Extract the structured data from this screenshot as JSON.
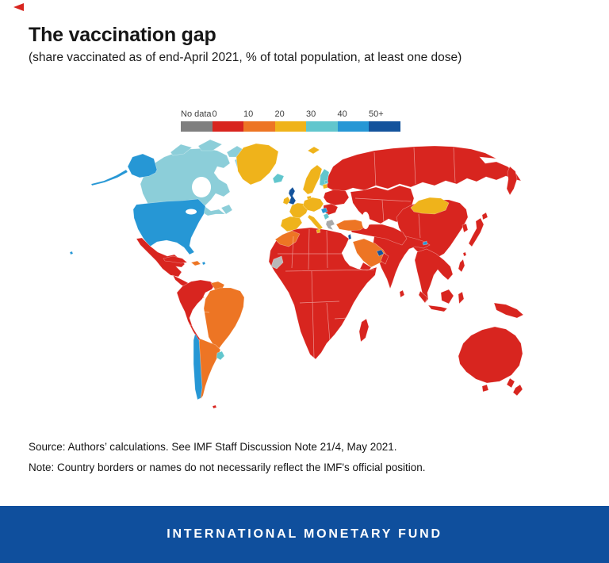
{
  "page": {
    "background": "#ffffff"
  },
  "decorations": {
    "corner_marker_color": "#d8251f"
  },
  "footnotes": {
    "source": "Source: Authors’ calculations. See IMF Staff Discussion Note 21/4, May 2021.",
    "note": "Note: Country borders or names do not necessarily reflect the IMF's official position."
  },
  "footer": {
    "label": "INTERNATIONAL MONETARY FUND",
    "background": "#0f4f9d",
    "text_color": "#ffffff"
  },
  "chart_data": {
    "type": "heatmap",
    "subtype": "choropleth_world_map",
    "title": "The vaccination gap",
    "subtitle": "(share vaccinated as of end-April 2021, % of total population, at least one dose)",
    "metric": "share of total population vaccinated with at least one dose",
    "as_of": "end-April 2021",
    "legend": {
      "position": "top",
      "bins": [
        {
          "label": "No data",
          "color": "#7f7f7f"
        },
        {
          "label": "0",
          "color": "#d8251f"
        },
        {
          "label": "10",
          "color": "#ed7524"
        },
        {
          "label": "20",
          "color": "#efb31b"
        },
        {
          "label": "30",
          "color": "#61c6cd"
        },
        {
          "label": "40",
          "color": "#2697d5"
        },
        {
          "label": "50+",
          "color": "#14539c"
        }
      ]
    },
    "regions": {
      "alaska": {
        "bin": "40"
      },
      "hawaii": {
        "bin": "40"
      },
      "canada": {
        "bin": "30",
        "fill": "#8cced9"
      },
      "greenland": {
        "bin": "20"
      },
      "iceland": {
        "bin": "30"
      },
      "svalbard": {
        "bin": "20"
      },
      "usa": {
        "bin": "40"
      },
      "mexico": {
        "bin": "0"
      },
      "central-america": {
        "bin": "0"
      },
      "panama-costa-rica": {
        "bin": "10"
      },
      "cuba": {
        "bin": "0"
      },
      "hispaniola": {
        "bin": "10"
      },
      "puerto-rico": {
        "bin": "40"
      },
      "andean-south-america": {
        "bin": "0"
      },
      "guyanas": {
        "bin": "10"
      },
      "brazil": {
        "bin": "10"
      },
      "chile": {
        "bin": "40"
      },
      "argentina": {
        "bin": "10"
      },
      "uruguay": {
        "bin": "30"
      },
      "falklands": {
        "bin": "0"
      },
      "uk": {
        "bin": "50+"
      },
      "ireland": {
        "bin": "20"
      },
      "scandinavia": {
        "bin": "20"
      },
      "denmark": {
        "bin": "20"
      },
      "finland": {
        "bin": "30"
      },
      "estonia": {
        "bin": "30"
      },
      "baltic-states": {
        "bin": "20"
      },
      "western-europe": {
        "bin": "20"
      },
      "iberia": {
        "bin": "20"
      },
      "central-europe": {
        "bin": "20"
      },
      "italy": {
        "bin": "20"
      },
      "ukraine": {
        "bin": "0"
      },
      "balkans": {
        "bin": "0"
      },
      "hungary": {
        "bin": "40"
      },
      "serbia": {
        "bin": "30"
      },
      "greece": {
        "bin": "No data",
        "fill": "#a9a9a9"
      },
      "turkey": {
        "bin": "10"
      },
      "russia": {
        "bin": "0"
      },
      "central-asia": {
        "bin": "0"
      },
      "middle-east": {
        "bin": "0"
      },
      "israel": {
        "bin": "50+"
      },
      "saudi-arabia": {
        "bin": "10"
      },
      "uae-qatar": {
        "bin": "50+"
      },
      "oman": {
        "bin": "0"
      },
      "yemen": {
        "bin": "0"
      },
      "africa": {
        "bin": "0"
      },
      "morocco": {
        "bin": "10"
      },
      "western-sahara": {
        "bin": "No data",
        "fill": "#b9b9b9"
      },
      "madagascar": {
        "bin": "0"
      },
      "india": {
        "bin": "0"
      },
      "bhutan": {
        "bin": "40"
      },
      "sri-lanka": {
        "bin": "0"
      },
      "china": {
        "bin": "0"
      },
      "mongolia": {
        "bin": "20"
      },
      "korea": {
        "bin": "0"
      },
      "japan": {
        "bin": "0"
      },
      "taiwan": {
        "bin": "0"
      },
      "se-asia": {
        "bin": "0"
      },
      "philippines": {
        "bin": "0"
      },
      "indonesia": {
        "bin": "0"
      },
      "new-guinea": {
        "bin": "0"
      },
      "australia": {
        "bin": "0"
      },
      "new-zealand": {
        "bin": "0"
      }
    }
  }
}
